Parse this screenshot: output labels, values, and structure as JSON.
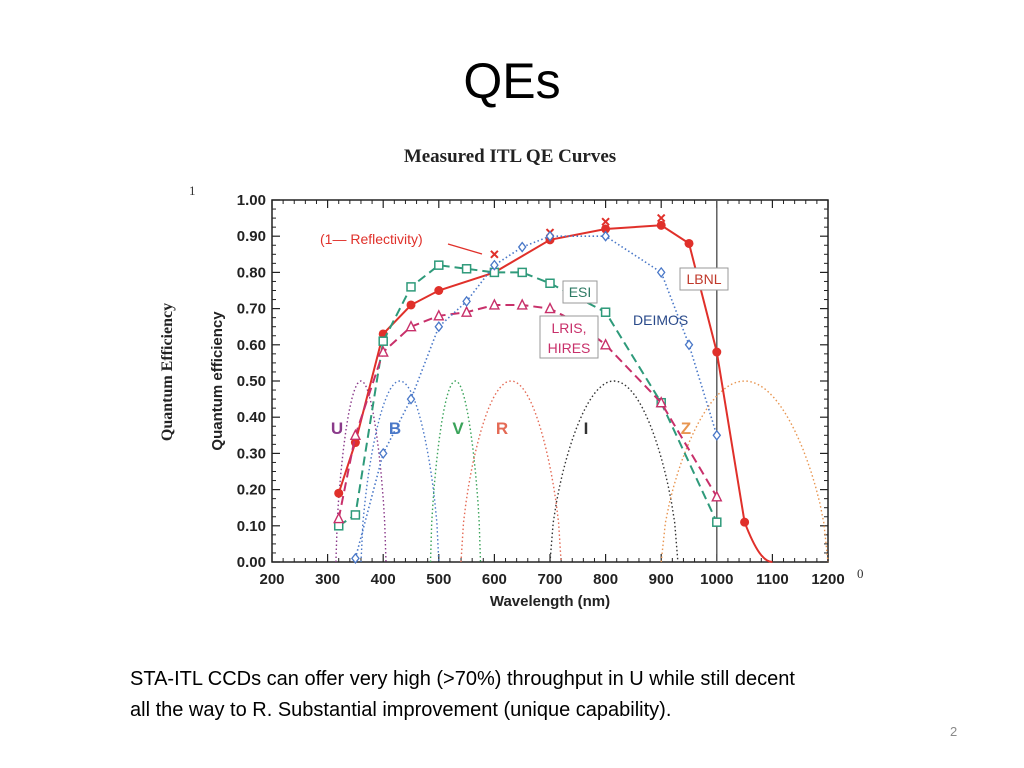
{
  "slide": {
    "title": "QEs",
    "caption_line1": "STA-ITL CCDs can offer very high (>70%) throughput in U while still decent",
    "caption_line2": "all the way to R. Substantial improvement (unique capability).",
    "page_number": "2"
  },
  "chart_data": {
    "type": "line",
    "title": "Measured ITL QE Curves",
    "outer_ylabel": "Quantum Efficiency",
    "stray_top_label": "1",
    "stray_right_label": "0",
    "xlabel": "Wavelength (nm)",
    "ylabel": "Quantum efficiency",
    "xlim": [
      200,
      1200
    ],
    "ylim": [
      0,
      1.0
    ],
    "x_ticks": [
      200,
      300,
      400,
      500,
      600,
      700,
      800,
      900,
      1000,
      1100,
      1200
    ],
    "y_ticks": [
      "0.00",
      "0.10",
      "0.20",
      "0.30",
      "0.40",
      "0.50",
      "0.60",
      "0.70",
      "0.80",
      "0.90",
      "1.00"
    ],
    "grid": false,
    "vertical_line_x": 1000,
    "series": [
      {
        "name": "LBNL",
        "color": "#e0302a",
        "style": "solid",
        "marker": "circle",
        "x": [
          320,
          350,
          400,
          450,
          500,
          600,
          700,
          800,
          900,
          950,
          1000,
          1050
        ],
        "y": [
          0.19,
          0.33,
          0.63,
          0.71,
          0.75,
          0.8,
          0.89,
          0.92,
          0.93,
          0.88,
          0.58,
          0.11
        ]
      },
      {
        "name": "(1— Reflectivity)",
        "color": "#e0302a",
        "style": "none",
        "marker": "x",
        "x": [
          600,
          700,
          800,
          900
        ],
        "y": [
          0.85,
          0.91,
          0.94,
          0.95
        ]
      },
      {
        "name": "ESI",
        "color": "#2e9a7a",
        "style": "dashed",
        "marker": "square",
        "x": [
          320,
          350,
          400,
          450,
          500,
          550,
          600,
          650,
          700,
          750,
          800,
          900,
          1000
        ],
        "y": [
          0.1,
          0.13,
          0.61,
          0.76,
          0.82,
          0.81,
          0.8,
          0.8,
          0.77,
          0.73,
          0.69,
          0.44,
          0.11
        ]
      },
      {
        "name": "LRIS, HIRES",
        "color": "#c8306a",
        "style": "dashed",
        "marker": "triangle",
        "x": [
          320,
          350,
          400,
          450,
          500,
          550,
          600,
          650,
          700,
          750,
          800,
          900,
          1000
        ],
        "y": [
          0.12,
          0.35,
          0.58,
          0.65,
          0.68,
          0.69,
          0.71,
          0.71,
          0.7,
          0.66,
          0.6,
          0.44,
          0.18
        ]
      },
      {
        "name": "DEIMOS",
        "color": "#4a78c8",
        "style": "dotted",
        "marker": "diamond",
        "x": [
          350,
          400,
          450,
          500,
          550,
          600,
          650,
          700,
          800,
          900,
          950,
          1000
        ],
        "y": [
          0.01,
          0.3,
          0.45,
          0.65,
          0.72,
          0.82,
          0.87,
          0.9,
          0.9,
          0.8,
          0.6,
          0.35
        ]
      }
    ],
    "filters": [
      {
        "name": "U",
        "color": "#8a3a8a",
        "peak": 360,
        "low": 315,
        "high": 405,
        "top": 0.5
      },
      {
        "name": "B",
        "color": "#4a78c8",
        "peak": 420,
        "low": 360,
        "high": 500,
        "top": 0.5
      },
      {
        "name": "V",
        "color": "#3aa35a",
        "peak": 530,
        "low": 485,
        "high": 575,
        "top": 0.5
      },
      {
        "name": "R",
        "color": "#e46a55",
        "peak": 610,
        "low": 540,
        "high": 720,
        "top": 0.5
      },
      {
        "name": "I",
        "color": "#333333",
        "peak": 800,
        "low": 700,
        "high": 930,
        "top": 0.5
      },
      {
        "name": "Z",
        "color": "#e89550",
        "peak": 1100,
        "low": 900,
        "high": 1200,
        "top": 0.5
      }
    ],
    "annotations": [
      "(1— Reflectivity)",
      "LBNL",
      "ESI",
      "DEIMOS",
      "LRIS,",
      "HIRES"
    ]
  }
}
